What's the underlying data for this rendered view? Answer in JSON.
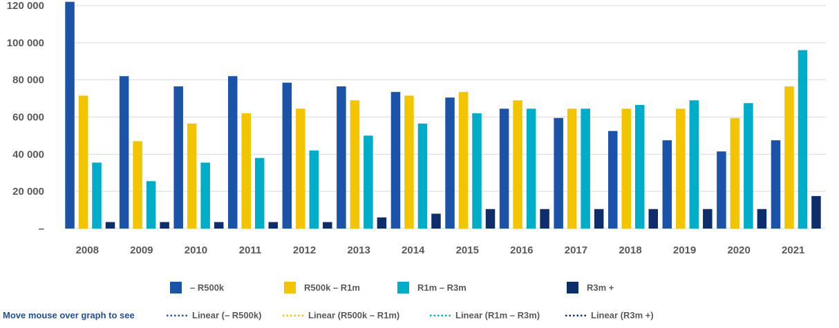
{
  "chart_data": {
    "type": "bar",
    "categories": [
      "2008",
      "2009",
      "2010",
      "2011",
      "2012",
      "2013",
      "2014",
      "2015",
      "2016",
      "2017",
      "2018",
      "2019",
      "2020",
      "2021"
    ],
    "series": [
      {
        "name": "– R500k",
        "color": "#1a53a8",
        "values": [
          122000,
          82000,
          76500,
          82000,
          78500,
          76500,
          73500,
          70500,
          64500,
          59500,
          52500,
          47500,
          41500,
          47500
        ]
      },
      {
        "name": "R500k – R1m",
        "color": "#f2c500",
        "values": [
          71500,
          47000,
          56500,
          62000,
          64500,
          69000,
          71500,
          73500,
          69000,
          64500,
          64500,
          64500,
          59500,
          76500
        ]
      },
      {
        "name": "R1m – R3m",
        "color": "#00adc9",
        "values": [
          35500,
          25500,
          35500,
          38000,
          42000,
          50000,
          56500,
          62000,
          64500,
          64500,
          66500,
          69000,
          67500,
          96000
        ]
      },
      {
        "name": "R3m +",
        "color": "#0d2d6b",
        "values": [
          3500,
          3500,
          3500,
          3500,
          3500,
          6000,
          8000,
          10500,
          10500,
          10500,
          10500,
          10500,
          10500,
          17500
        ]
      }
    ],
    "y_ticks": [
      "–",
      "20 000",
      "40 000",
      "60 000",
      "80 000",
      "100 000",
      "120 000"
    ],
    "ylim": [
      0,
      120000
    ],
    "grid": true,
    "legend_position": "bottom",
    "trend_legend": {
      "hint": "Move mouse over graph to see",
      "items": [
        {
          "label": "Linear (– R500k)",
          "color": "#1a53a8"
        },
        {
          "label": "Linear (R500k – R1m)",
          "color": "#f2c500"
        },
        {
          "label": "Linear (R1m – R3m)",
          "color": "#00adc9"
        },
        {
          "label": "Linear (R3m +)",
          "color": "#0d2d6b"
        }
      ]
    }
  }
}
